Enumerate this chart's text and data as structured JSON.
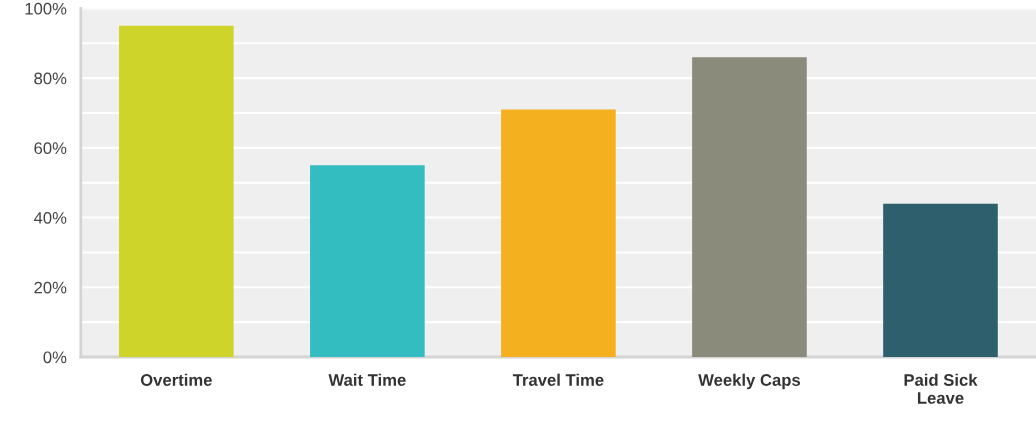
{
  "chart_data": {
    "type": "bar",
    "categories": [
      "Overtime",
      "Wait Time",
      "Travel Time",
      "Weekly Caps",
      "Paid Sick\nLeave"
    ],
    "values": [
      95,
      55,
      71,
      86,
      44
    ],
    "colors": [
      "#cfd42a",
      "#34bdc0",
      "#f5b020",
      "#8a8b7a",
      "#2e5f6d"
    ],
    "ylim": [
      0,
      100
    ],
    "yticks": [
      {
        "value": 0,
        "label": "0%"
      },
      {
        "value": 10,
        "label": null
      },
      {
        "value": 20,
        "label": "20%"
      },
      {
        "value": 30,
        "label": null
      },
      {
        "value": 40,
        "label": "40%"
      },
      {
        "value": 50,
        "label": null
      },
      {
        "value": 60,
        "label": "60%"
      },
      {
        "value": 70,
        "label": null
      },
      {
        "value": 80,
        "label": "80%"
      },
      {
        "value": 90,
        "label": null
      },
      {
        "value": 100,
        "label": "100%"
      }
    ],
    "grid": "y"
  }
}
